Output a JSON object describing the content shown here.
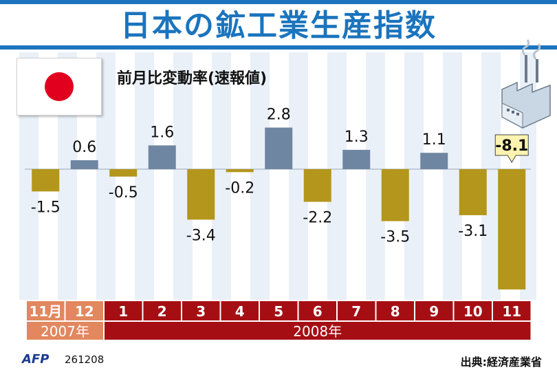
{
  "title": "日本の鉱工業生産指数",
  "subtitle": "前月比変動率(速報値)",
  "footer": {
    "logo": "AFP",
    "code": "261208",
    "source": "出典:経済産業省"
  },
  "colors": {
    "positive": "#6f86a2",
    "negative": "#b3961b",
    "year2007": "#e2875e",
    "year2008": "#a50f14",
    "title": "#1b74bd"
  },
  "chart_data": {
    "type": "bar",
    "categories": [
      "11月",
      "12",
      "1",
      "2",
      "3",
      "4",
      "5",
      "6",
      "7",
      "8",
      "9",
      "10",
      "11"
    ],
    "values": [
      -1.5,
      0.6,
      -0.5,
      1.6,
      -3.4,
      -0.2,
      2.8,
      -2.2,
      1.3,
      -3.5,
      1.1,
      -3.1,
      -8.1
    ],
    "value_labels": [
      "-1.5",
      "0.6",
      "-0.5",
      "1.6",
      "-3.4",
      "-0.2",
      "2.8",
      "-2.2",
      "1.3",
      "-3.5",
      "1.1",
      "-3.1",
      "-8.1"
    ],
    "highlight_index": 12,
    "years": [
      {
        "label": "2007年",
        "count": 2,
        "color": "#e2875e"
      },
      {
        "label": "2008年",
        "count": 11,
        "color": "#a50f14"
      }
    ],
    "grid": false,
    "legend": "none"
  }
}
